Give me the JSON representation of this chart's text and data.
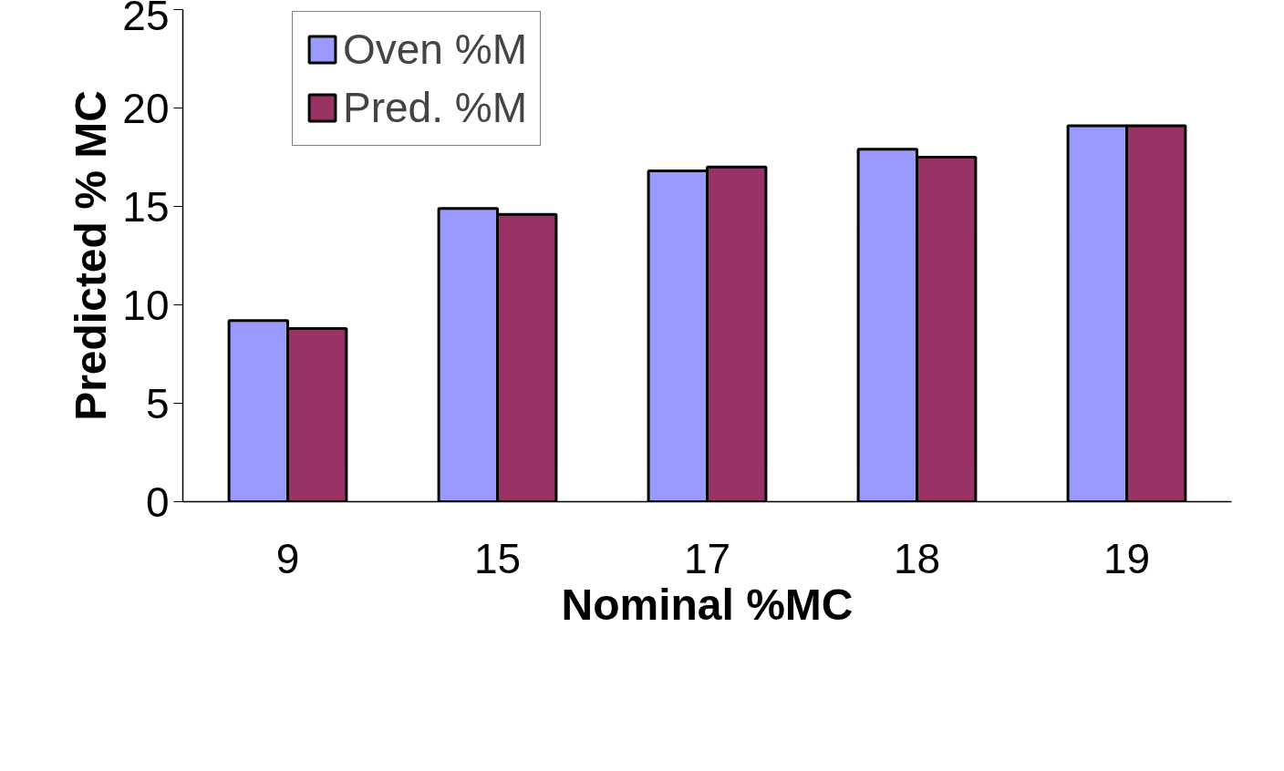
{
  "chart_data": {
    "type": "bar",
    "xlabel": "Nominal %MC",
    "ylabel": "Predicted % MC",
    "categories": [
      "9",
      "15",
      "17",
      "18",
      "19"
    ],
    "series": [
      {
        "name": "Oven %M",
        "color": "#9999ff",
        "values": [
          9.2,
          14.9,
          16.8,
          17.9,
          19.1
        ]
      },
      {
        "name": "Pred. %M",
        "color": "#993366",
        "values": [
          8.8,
          14.6,
          17.0,
          17.5,
          19.1
        ]
      }
    ],
    "ylim": [
      0,
      25
    ],
    "yticks": [
      0,
      5,
      10,
      15,
      20,
      25
    ],
    "grid": false,
    "legend": "top"
  }
}
